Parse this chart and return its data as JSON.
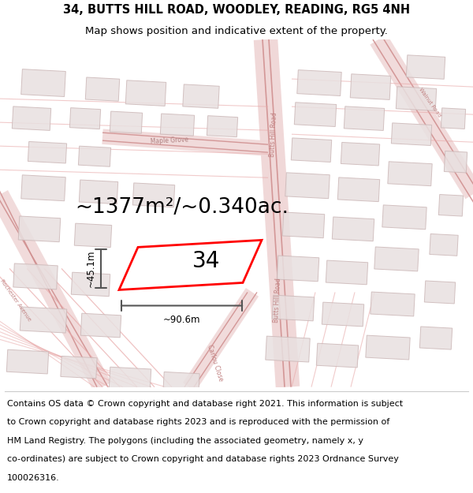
{
  "title": "34, BUTTS HILL ROAD, WOODLEY, READING, RG5 4NH",
  "subtitle": "Map shows position and indicative extent of the property.",
  "area_text": "~1377m²/~0.340ac.",
  "dim_h": "~90.6m",
  "dim_v": "~45.1m",
  "property_label": "34",
  "footer_lines": [
    "Contains OS data © Crown copyright and database right 2021. This information is subject",
    "to Crown copyright and database rights 2023 and is reproduced with the permission of",
    "HM Land Registry. The polygons (including the associated geometry, namely x, y",
    "co-ordinates) are subject to Crown copyright and database rights 2023 Ordnance Survey",
    "100026316."
  ],
  "map_bg": "#ffffff",
  "road_color": "#e8a8a8",
  "road_line_color": "#e09090",
  "building_fill": "#e8e0e0",
  "building_edge": "#ccb8b8",
  "property_color": "#ff0000",
  "title_fontsize": 10.5,
  "subtitle_fontsize": 9.5,
  "area_fontsize": 19,
  "label_fontsize": 20,
  "footer_fontsize": 8.0,
  "figsize": [
    6.0,
    6.25
  ],
  "dpi": 100
}
